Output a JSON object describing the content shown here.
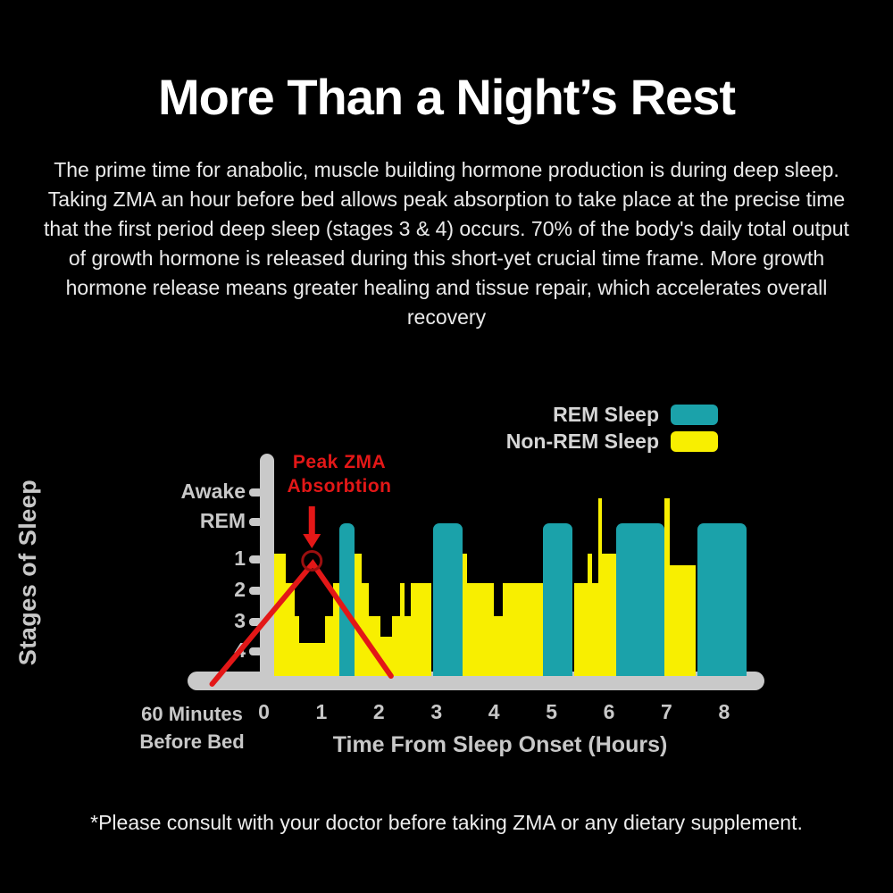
{
  "header": {
    "title": "More Than a Night’s Rest"
  },
  "intro": {
    "text": "The prime time for anabolic, muscle building hormone production is during deep sleep. Taking ZMA an hour before bed allows peak absorption to take place at the precise time that the first period deep sleep (stages 3 & 4) occurs. 70% of the body's daily total output of growth hormone is released during this short-yet crucial time frame. More growth hormone release means greater healing and tissue repair, which accelerates overall recovery"
  },
  "footer": {
    "disclaimer": "*Please consult with your doctor before taking ZMA or any dietary supplement."
  },
  "colors": {
    "background": "#000000",
    "rem_teal": "#1ba2aa",
    "nonrem_yellow": "#f8ef00",
    "axis_gray": "#c9c9c9",
    "annotation_red": "#e31717",
    "annotation_circle_red": "#9b0f0f",
    "title_white": "#ffffff",
    "tick_text_gray": "#c8c8c8"
  },
  "chart_data": {
    "type": "area",
    "subtype": "sleep-hypnogram",
    "title": "",
    "xlabel": "Time From Sleep Onset (Hours)",
    "ylabel": "Stages of Sleep",
    "x_prefix": {
      "line1": "60 Minutes",
      "line2": "Before Bed"
    },
    "x_ticks": [
      "0",
      "1",
      "2",
      "3",
      "4",
      "5",
      "6",
      "7",
      "8"
    ],
    "x_range_hours": [
      0,
      8
    ],
    "y_ticks": [
      "Awake",
      "REM",
      "1",
      "2",
      "3",
      "4"
    ],
    "grid": false,
    "legend_position": "top-right",
    "legend": [
      {
        "label": "REM Sleep",
        "series": "rem"
      },
      {
        "label": "Non-REM Sleep",
        "series": "nrem"
      }
    ],
    "annotation": {
      "line1": "Peak ZMA",
      "line2": "Absorbtion",
      "peak_hour": 0.85,
      "peak_stage": "1",
      "rise_start_hour": -0.9,
      "fall_end_hour": 2.21
    },
    "segments": [
      {
        "from": 0.18,
        "to": 0.38,
        "stage": "1",
        "type": "nrem"
      },
      {
        "from": 0.38,
        "to": 0.54,
        "stage": "2",
        "type": "nrem"
      },
      {
        "from": 0.54,
        "to": 0.62,
        "stage": "3",
        "type": "nrem"
      },
      {
        "from": 0.62,
        "to": 1.06,
        "stage": "4",
        "type": "nrem"
      },
      {
        "from": 1.06,
        "to": 1.21,
        "stage": "3",
        "type": "nrem"
      },
      {
        "from": 1.21,
        "to": 1.31,
        "stage": "2",
        "type": "nrem"
      },
      {
        "from": 1.31,
        "to": 1.57,
        "stage": "rem",
        "type": "rem"
      },
      {
        "from": 1.57,
        "to": 1.7,
        "stage": "1",
        "type": "nrem"
      },
      {
        "from": 1.7,
        "to": 1.83,
        "stage": "2",
        "type": "nrem"
      },
      {
        "from": 1.83,
        "to": 2.02,
        "stage": "3",
        "type": "nrem"
      },
      {
        "from": 2.02,
        "to": 2.22,
        "stage": "3.5",
        "type": "nrem"
      },
      {
        "from": 2.22,
        "to": 2.36,
        "stage": "3",
        "type": "nrem"
      },
      {
        "from": 2.36,
        "to": 2.44,
        "stage": "2",
        "type": "nrem"
      },
      {
        "from": 2.44,
        "to": 2.55,
        "stage": "3",
        "type": "nrem"
      },
      {
        "from": 2.55,
        "to": 2.91,
        "stage": "2",
        "type": "nrem"
      },
      {
        "from": 2.94,
        "to": 3.45,
        "stage": "rem",
        "type": "rem"
      },
      {
        "from": 3.45,
        "to": 3.53,
        "stage": "1",
        "type": "nrem"
      },
      {
        "from": 3.53,
        "to": 4.0,
        "stage": "2",
        "type": "nrem"
      },
      {
        "from": 4.0,
        "to": 4.15,
        "stage": "3",
        "type": "nrem"
      },
      {
        "from": 4.15,
        "to": 4.85,
        "stage": "2",
        "type": "nrem"
      },
      {
        "from": 4.85,
        "to": 5.37,
        "stage": "rem",
        "type": "rem"
      },
      {
        "from": 5.39,
        "to": 5.62,
        "stage": "2",
        "type": "nrem"
      },
      {
        "from": 5.62,
        "to": 5.7,
        "stage": "1",
        "type": "nrem"
      },
      {
        "from": 5.7,
        "to": 5.81,
        "stage": "2",
        "type": "nrem"
      },
      {
        "from": 5.81,
        "to": 5.88,
        "stage": "awake",
        "type": "nrem"
      },
      {
        "from": 5.88,
        "to": 6.13,
        "stage": "1",
        "type": "nrem"
      },
      {
        "from": 6.13,
        "to": 6.96,
        "stage": "rem",
        "type": "rem"
      },
      {
        "from": 6.96,
        "to": 7.05,
        "stage": "awake",
        "type": "nrem"
      },
      {
        "from": 7.05,
        "to": 7.5,
        "stage": "1.2",
        "type": "nrem"
      },
      {
        "from": 7.53,
        "to": 8.39,
        "stage": "rem",
        "type": "rem"
      }
    ]
  }
}
